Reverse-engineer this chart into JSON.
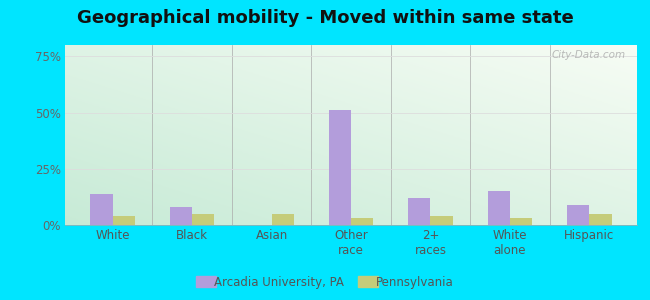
{
  "title": "Geographical mobility - Moved within same state",
  "categories": [
    "White",
    "Black",
    "Asian",
    "Other\nrace",
    "2+\nraces",
    "White\nalone",
    "Hispanic"
  ],
  "arcadia_values": [
    14,
    8,
    0,
    51,
    12,
    15,
    9
  ],
  "pennsylvania_values": [
    4,
    5,
    5,
    3,
    4,
    3,
    5
  ],
  "arcadia_color": "#b39ddb",
  "pennsylvania_color": "#c5cc7a",
  "yticks": [
    0,
    25,
    50,
    75
  ],
  "ylim": [
    0,
    80
  ],
  "ytick_labels": [
    "0%",
    "25%",
    "50%",
    "75%"
  ],
  "background_outer": "#00e5ff",
  "grid_color": "#dddddd",
  "title_fontsize": 13,
  "tick_fontsize": 8.5,
  "legend_label_arcadia": "Arcadia University, PA",
  "legend_label_pennsylvania": "Pennsylvania",
  "watermark": "City-Data.com"
}
